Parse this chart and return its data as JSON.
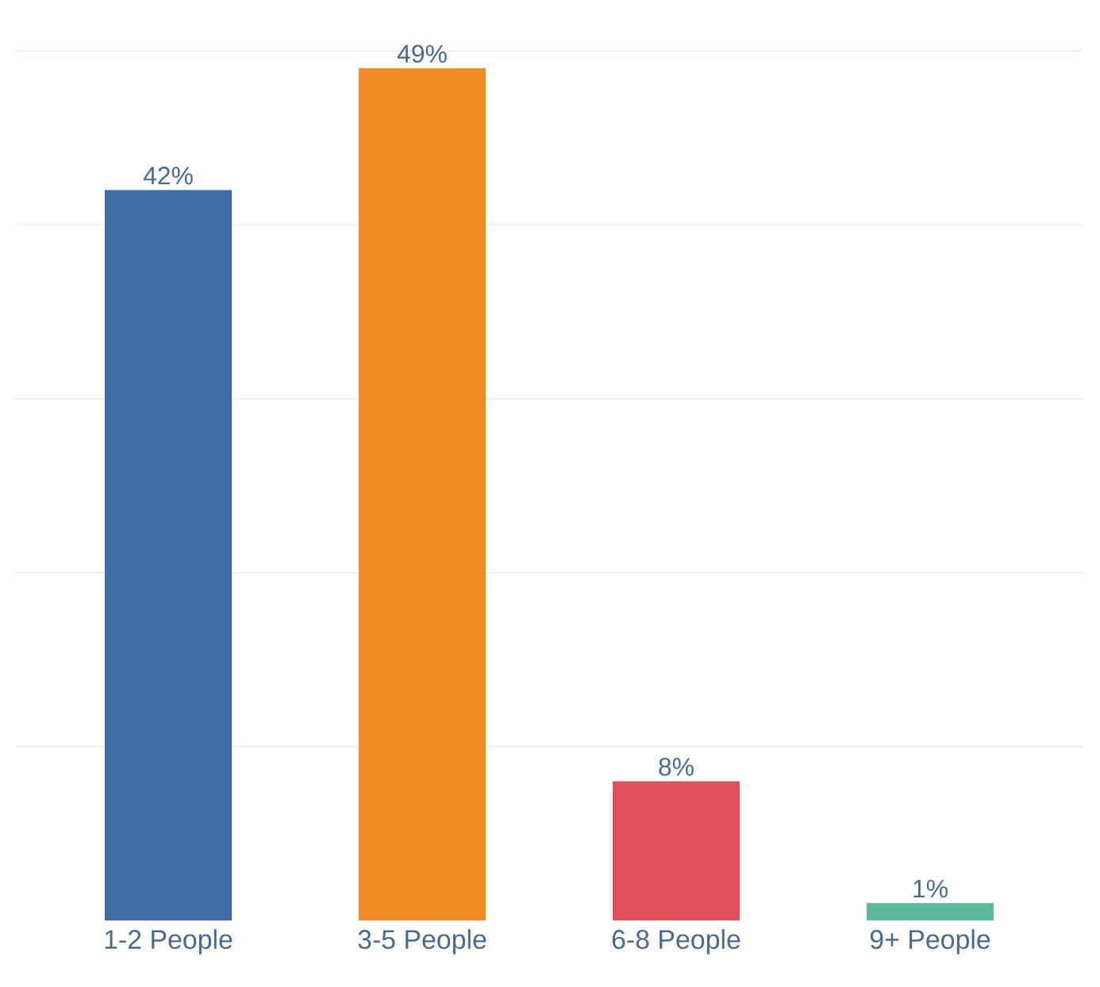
{
  "chart_data": {
    "type": "bar",
    "categories": [
      "1-2 People",
      "3-5 People",
      "6-8 People",
      "9+ People"
    ],
    "values": [
      42,
      49,
      8,
      1
    ],
    "colors": [
      "#3d6ea6",
      "#f28b26",
      "#e0505a",
      "#5db8a0"
    ],
    "value_labels": [
      "42%",
      "49%",
      "8%",
      "1%"
    ],
    "yticks": [
      {
        "value": 10,
        "label": null
      },
      {
        "value": 20,
        "label": null
      },
      {
        "value": 30,
        "label": null
      },
      {
        "value": 40,
        "label": null
      },
      {
        "value": 50,
        "label": null
      }
    ],
    "grid": "y",
    "tick_labels": "x"
  }
}
